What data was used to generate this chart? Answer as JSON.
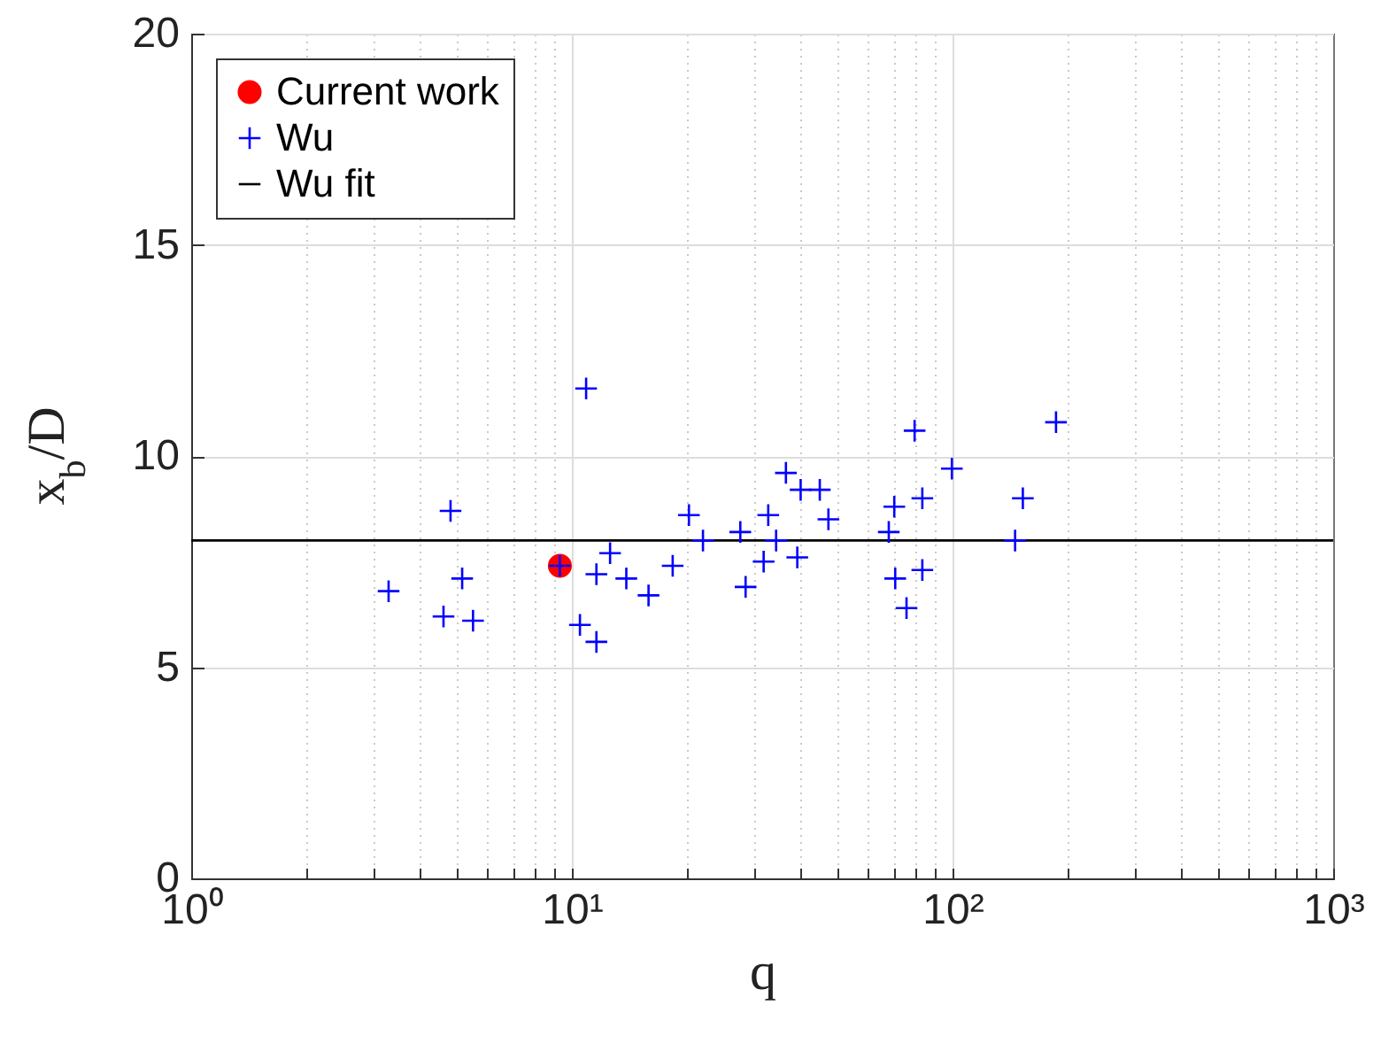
{
  "chart_data": {
    "type": "scatter",
    "xlabel": "q",
    "ylabel": "x$_{b}$/D",
    "log": "x",
    "grid": true,
    "legend": "top left",
    "xlim": [
      1,
      1000
    ],
    "ylim": [
      0,
      20
    ],
    "xticks": [
      {
        "value": 1,
        "label": "10⁰"
      },
      {
        "value": 2,
        "label": null
      },
      {
        "value": 3,
        "label": null
      },
      {
        "value": 4,
        "label": null
      },
      {
        "value": 5,
        "label": null
      },
      {
        "value": 6,
        "label": null
      },
      {
        "value": 7,
        "label": null
      },
      {
        "value": 8,
        "label": null
      },
      {
        "value": 9,
        "label": null
      },
      {
        "value": 10,
        "label": "10¹"
      },
      {
        "value": 20,
        "label": null
      },
      {
        "value": 30,
        "label": null
      },
      {
        "value": 40,
        "label": null
      },
      {
        "value": 50,
        "label": null
      },
      {
        "value": 60,
        "label": null
      },
      {
        "value": 70,
        "label": null
      },
      {
        "value": 80,
        "label": null
      },
      {
        "value": 90,
        "label": null
      },
      {
        "value": 100,
        "label": "10²"
      },
      {
        "value": 200,
        "label": null
      },
      {
        "value": 300,
        "label": null
      },
      {
        "value": 400,
        "label": null
      },
      {
        "value": 500,
        "label": null
      },
      {
        "value": 600,
        "label": null
      },
      {
        "value": 700,
        "label": null
      },
      {
        "value": 800,
        "label": null
      },
      {
        "value": 900,
        "label": null
      },
      {
        "value": 1000,
        "label": "10³"
      }
    ],
    "yticks": [
      0,
      5,
      10,
      15,
      20
    ],
    "series": [
      {
        "name": "Current work",
        "type": "scatter",
        "marker": "circle",
        "color": "#ff0000",
        "x": [
          9.3
        ],
        "values": [
          7.4
        ]
      },
      {
        "name": "Wu",
        "type": "scatter",
        "marker": "cross",
        "color": "#0000ff",
        "x": [
          10.9,
          4.8,
          20.3,
          22.1,
          9.3,
          12.6,
          5.15,
          3.3,
          11.6,
          13.9,
          18.4,
          15.9,
          4.6,
          5.5,
          10.5,
          11.6,
          27.7,
          32.8,
          36.5,
          39.9,
          44.8,
          47.2,
          34.4,
          31.9,
          28.6,
          39.1,
          70.3,
          68,
          79.5,
          83.3,
          70.7,
          83.3,
          75.7,
          99.6,
          187,
          153,
          146
        ],
        "values": [
          11.6,
          8.7,
          8.6,
          8.0,
          7.4,
          7.7,
          7.1,
          6.8,
          7.2,
          7.1,
          7.4,
          6.7,
          6.2,
          6.1,
          6.0,
          5.6,
          8.2,
          8.6,
          9.6,
          9.2,
          9.2,
          8.5,
          8.0,
          7.5,
          6.9,
          7.6,
          8.8,
          8.2,
          10.6,
          9.0,
          7.1,
          7.3,
          6.4,
          9.7,
          10.8,
          9.0,
          8.0
        ]
      },
      {
        "name": "Wu fit",
        "type": "line",
        "marker": "none",
        "color": "#000000",
        "x": [
          1,
          1000
        ],
        "values": [
          8,
          8
        ]
      }
    ]
  }
}
